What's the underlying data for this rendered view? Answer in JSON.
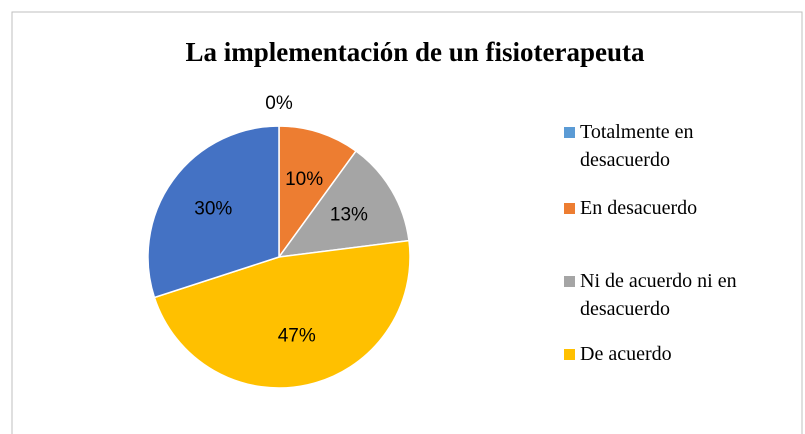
{
  "chart_data": {
    "type": "pie",
    "title": "La implementación de un fisioterapeuta",
    "categories": [
      "Totalmente en desacuerdo",
      "En desacuerdo",
      "Ni de acuerdo ni en desacuerdo",
      "De acuerdo",
      null
    ],
    "values": [
      0,
      10,
      13,
      47,
      30
    ],
    "value_labels": [
      "0%",
      "10%",
      "13%",
      "47%",
      "30%"
    ],
    "colors": [
      "#5b9bd5",
      "#ed7d31",
      "#a5a5a5",
      "#ffc000",
      "#4472c4"
    ],
    "legend": "right"
  }
}
